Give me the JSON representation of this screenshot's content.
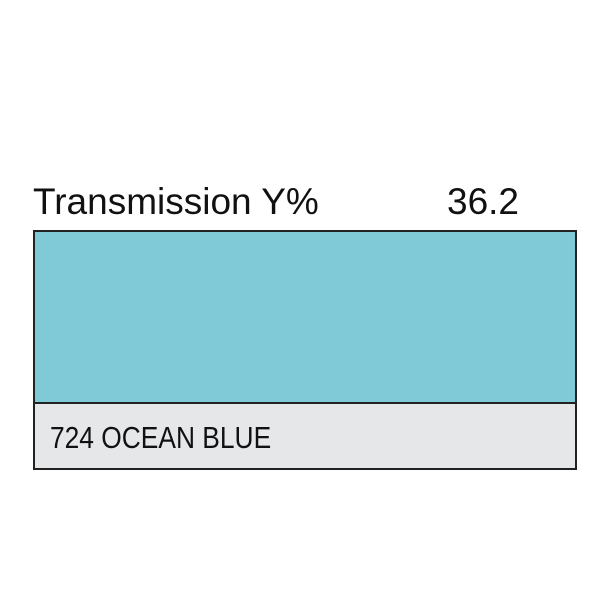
{
  "header": {
    "title": "Transmission Y%",
    "value": "36.2"
  },
  "swatch": {
    "name": "724 OCEAN BLUE",
    "color": "#80CAD8",
    "label_bg": "#E6E7E9"
  }
}
